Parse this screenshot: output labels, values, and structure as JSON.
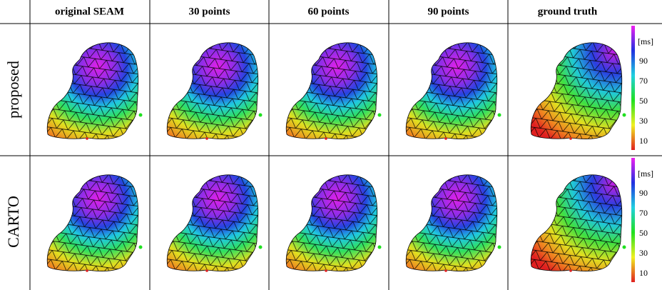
{
  "header": {
    "columns": [
      "original SEAM",
      "30 points",
      "60 points",
      "90 points",
      "ground truth"
    ]
  },
  "rows": [
    {
      "label": "proposed",
      "colorbar": {
        "unit": "[ms]",
        "ticks": [
          "90",
          "70",
          "50",
          "30",
          "10"
        ]
      }
    },
    {
      "label": "CARTO",
      "colorbar": {
        "unit": "[ms]",
        "ticks": [
          "90",
          "70",
          "50",
          "30",
          "10"
        ]
      }
    }
  ]
}
